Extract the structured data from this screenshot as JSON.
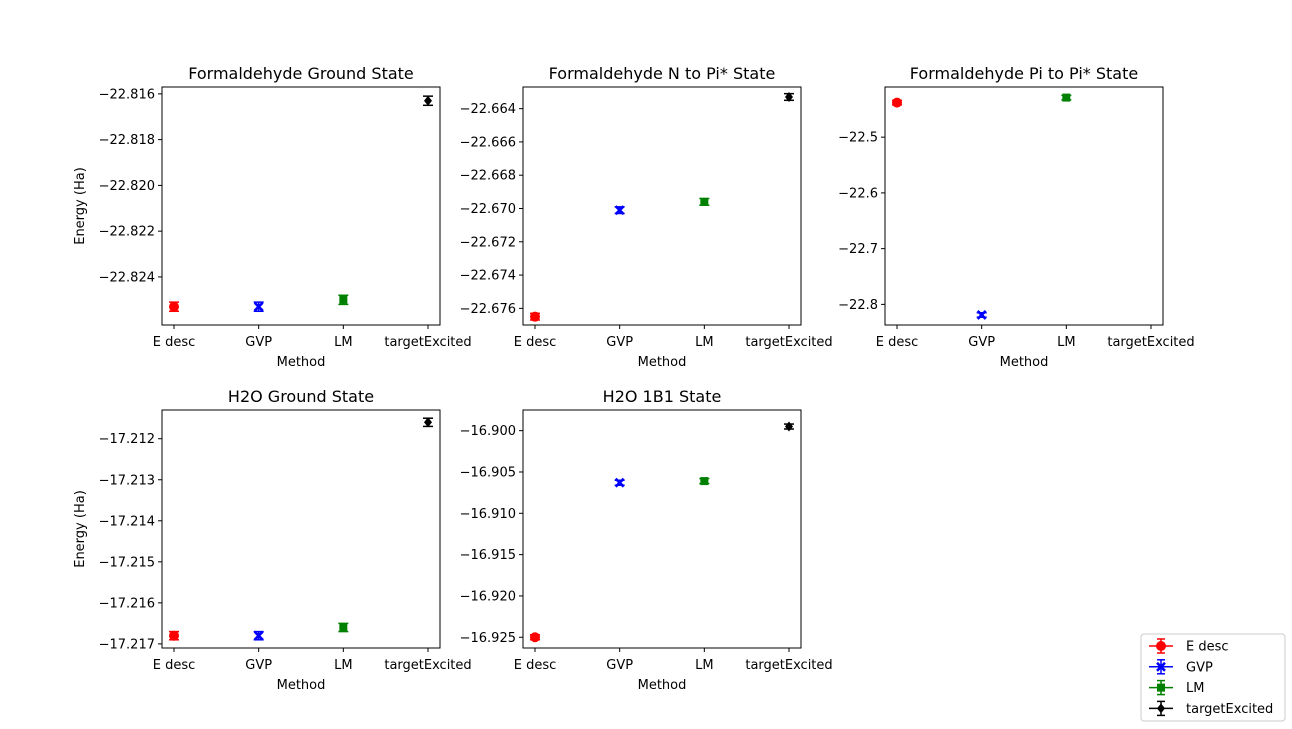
{
  "figure": {
    "categories": [
      "E desc",
      "GVP",
      "LM",
      "targetExcited"
    ],
    "series_styles": [
      {
        "name": "E desc",
        "color": "#ff0000",
        "marker": "circle"
      },
      {
        "name": "GVP",
        "color": "#0000ff",
        "marker": "x"
      },
      {
        "name": "LM",
        "color": "#008000",
        "marker": "square"
      },
      {
        "name": "targetExcited",
        "color": "#000000",
        "marker": "diamond"
      }
    ],
    "legend": {
      "placement": "bottom-right outside",
      "entries": [
        "E desc",
        "GVP",
        "LM",
        "targetExcited"
      ]
    }
  },
  "chart_data": [
    {
      "type": "scatter",
      "title": "Formaldehyde Ground State",
      "xlabel": "Method",
      "ylabel": "Energy (Ha)",
      "categories": [
        "E desc",
        "GVP",
        "LM",
        "targetExcited"
      ],
      "ylim": [
        -22.8261,
        -22.8157
      ],
      "yticks": [
        -22.816,
        -22.818,
        -22.82,
        -22.822,
        -22.824
      ],
      "ytick_labels": [
        "−22.816",
        "−22.818",
        "−22.820",
        "−22.822",
        "−22.824"
      ],
      "series": [
        {
          "name": "E desc",
          "values": [
            -22.8253
          ],
          "errors": [
            0.0002
          ]
        },
        {
          "name": "GVP",
          "values": [
            -22.8253
          ],
          "errors": [
            0.0002
          ]
        },
        {
          "name": "LM",
          "values": [
            -22.825
          ],
          "errors": [
            0.0002
          ]
        },
        {
          "name": "targetExcited",
          "values": [
            -22.8163
          ],
          "errors": [
            0.0002
          ]
        }
      ]
    },
    {
      "type": "scatter",
      "title": "Formaldehyde N to Pi* State",
      "xlabel": "Method",
      "ylabel": "",
      "categories": [
        "E desc",
        "GVP",
        "LM",
        "targetExcited"
      ],
      "ylim": [
        -22.677,
        -22.6627
      ],
      "yticks": [
        -22.664,
        -22.666,
        -22.668,
        -22.67,
        -22.672,
        -22.674,
        -22.676
      ],
      "ytick_labels": [
        "−22.664",
        "−22.666",
        "−22.668",
        "−22.670",
        "−22.672",
        "−22.674",
        "−22.676"
      ],
      "series": [
        {
          "name": "E desc",
          "values": [
            -22.6765
          ],
          "errors": [
            0.0002
          ]
        },
        {
          "name": "GVP",
          "values": [
            -22.6701
          ],
          "errors": [
            0.0002
          ]
        },
        {
          "name": "LM",
          "values": [
            -22.6696
          ],
          "errors": [
            0.0002
          ]
        },
        {
          "name": "targetExcited",
          "values": [
            -22.6633
          ],
          "errors": [
            0.0002
          ]
        }
      ]
    },
    {
      "type": "scatter",
      "title": "Formaldehyde Pi to Pi* State",
      "xlabel": "Method",
      "ylabel": "",
      "categories": [
        "E desc",
        "GVP",
        "LM",
        "targetExcited"
      ],
      "ylim": [
        -22.837,
        -22.41
      ],
      "yticks": [
        -22.5,
        -22.6,
        -22.7,
        -22.8
      ],
      "ytick_labels": [
        "−22.5",
        "−22.6",
        "−22.7",
        "−22.8"
      ],
      "series": [
        {
          "name": "E desc",
          "values": [
            -22.438
          ],
          "errors": [
            0.004
          ]
        },
        {
          "name": "GVP",
          "values": [
            -22.819
          ],
          "errors": [
            0.004
          ]
        },
        {
          "name": "LM",
          "values": [
            -22.429
          ],
          "errors": [
            0.004
          ]
        }
      ]
    },
    {
      "type": "scatter",
      "title": "H2O Ground State",
      "xlabel": "Method",
      "ylabel": "Energy (Ha)",
      "categories": [
        "E desc",
        "GVP",
        "LM",
        "targetExcited"
      ],
      "ylim": [
        -17.2171,
        -17.2113
      ],
      "yticks": [
        -17.212,
        -17.213,
        -17.214,
        -17.215,
        -17.216,
        -17.217
      ],
      "ytick_labels": [
        "−17.212",
        "−17.213",
        "−17.214",
        "−17.215",
        "−17.216",
        "−17.217"
      ],
      "series": [
        {
          "name": "E desc",
          "values": [
            -17.2168
          ],
          "errors": [
            0.0001
          ]
        },
        {
          "name": "GVP",
          "values": [
            -17.2168
          ],
          "errors": [
            0.0001
          ]
        },
        {
          "name": "LM",
          "values": [
            -17.2166
          ],
          "errors": [
            0.0001
          ]
        },
        {
          "name": "targetExcited",
          "values": [
            -17.2116
          ],
          "errors": [
            0.0001
          ]
        }
      ]
    },
    {
      "type": "scatter",
      "title": "H2O 1B1 State",
      "xlabel": "Method",
      "ylabel": "",
      "categories": [
        "E desc",
        "GVP",
        "LM",
        "targetExcited"
      ],
      "ylim": [
        -16.9263,
        -16.8975
      ],
      "yticks": [
        -16.9,
        -16.905,
        -16.91,
        -16.915,
        -16.92,
        -16.925
      ],
      "ytick_labels": [
        "−16.900",
        "−16.905",
        "−16.910",
        "−16.915",
        "−16.920",
        "−16.925"
      ],
      "series": [
        {
          "name": "E desc",
          "values": [
            -16.925
          ],
          "errors": [
            0.0003
          ]
        },
        {
          "name": "GVP",
          "values": [
            -16.9063
          ],
          "errors": [
            0.0003
          ]
        },
        {
          "name": "LM",
          "values": [
            -16.9061
          ],
          "errors": [
            0.0003
          ]
        },
        {
          "name": "targetExcited",
          "values": [
            -16.8995
          ],
          "errors": [
            0.0003
          ]
        }
      ]
    }
  ]
}
